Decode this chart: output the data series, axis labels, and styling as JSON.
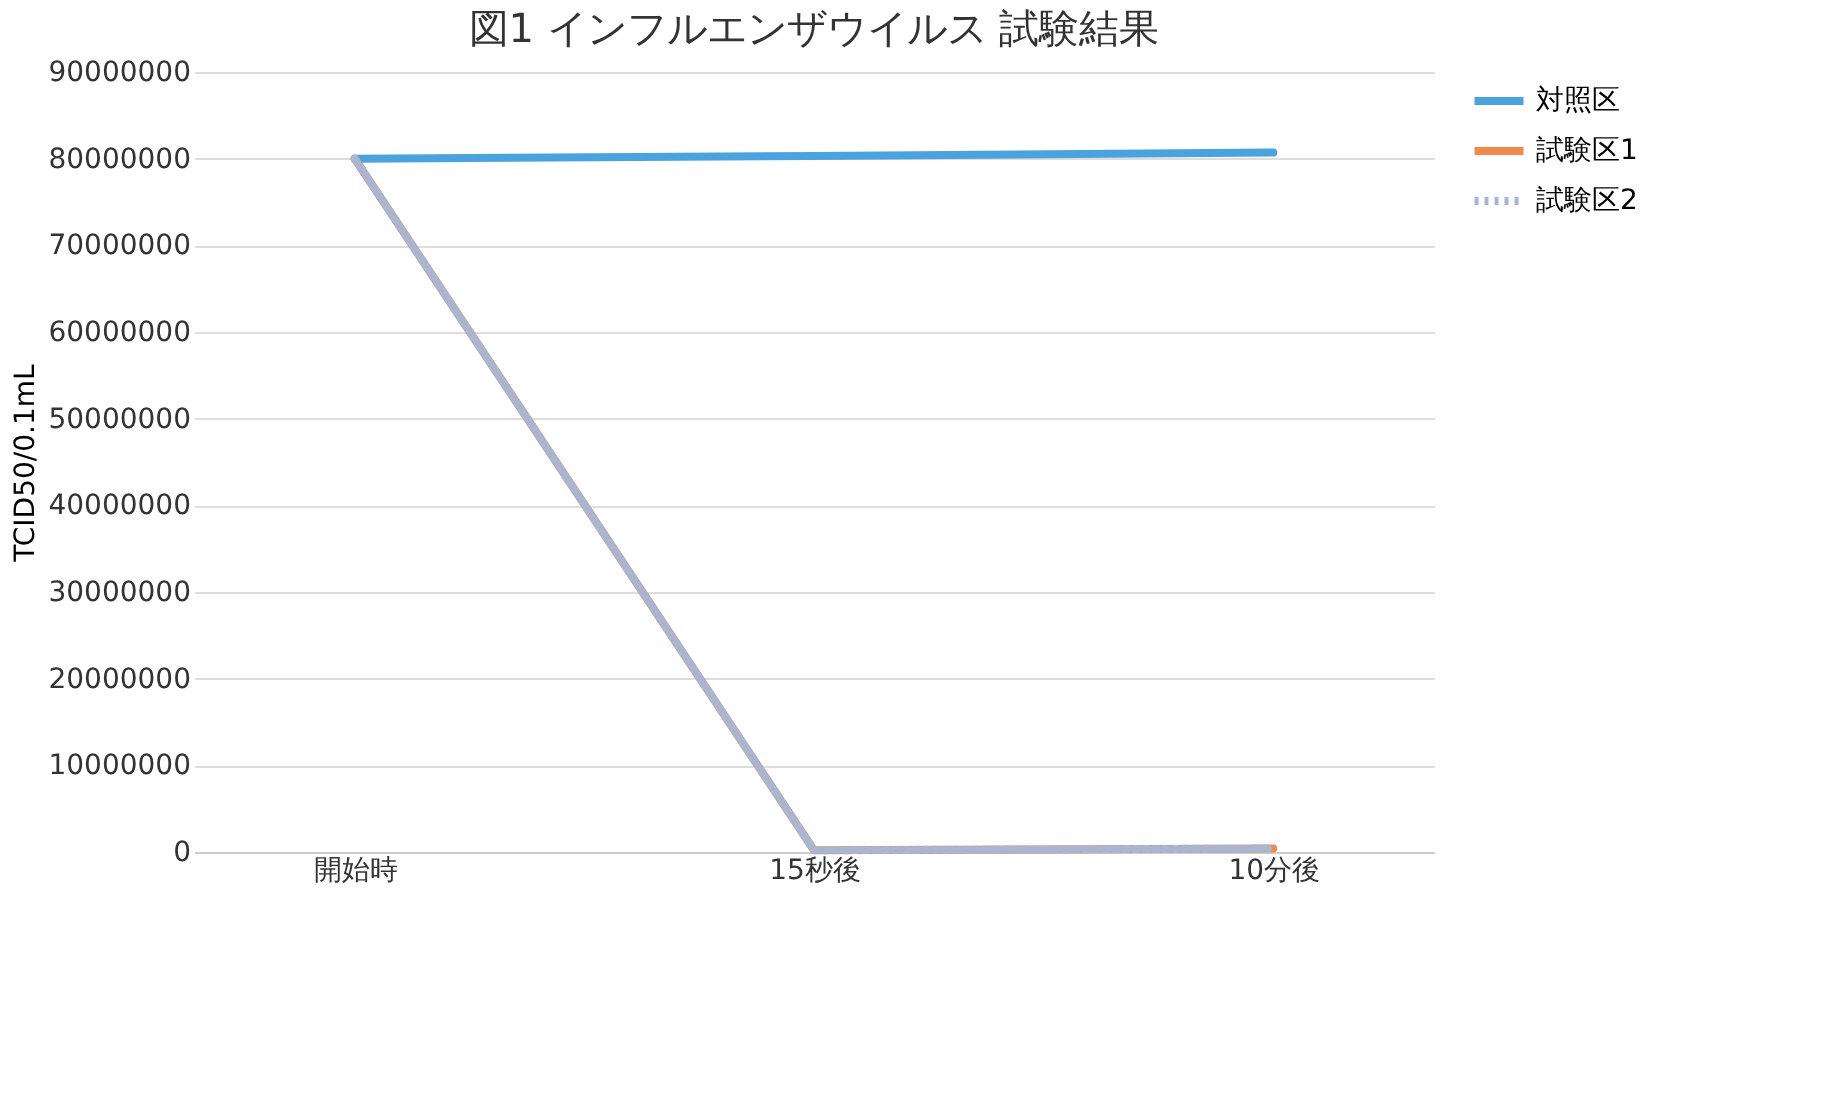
{
  "chart_data": {
    "type": "line",
    "title": "図1  インフルエンザウイルス  試験結果",
    "ylabel": "TCID50/0.1mL",
    "categories": [
      "開始時",
      "15秒後",
      "10分後"
    ],
    "series": [
      {
        "name": "対照区",
        "color": "#4aa3df",
        "values": [
          80000000,
          80300000,
          80700000
        ],
        "line_style": "solid"
      },
      {
        "name": "試験区1",
        "color": "#f08a4b",
        "values": [
          80000000,
          200000,
          400000
        ],
        "line_style": "solid"
      },
      {
        "name": "試験区2",
        "color": "#a8b6d4",
        "values": [
          80000000,
          200000,
          400000
        ],
        "line_style": "dotted"
      }
    ],
    "ylim": [
      0,
      90000000
    ],
    "yticks": [
      0,
      10000000,
      20000000,
      30000000,
      40000000,
      50000000,
      60000000,
      70000000,
      80000000,
      90000000
    ],
    "grid": "y",
    "legend": "right",
    "marker": "none"
  }
}
